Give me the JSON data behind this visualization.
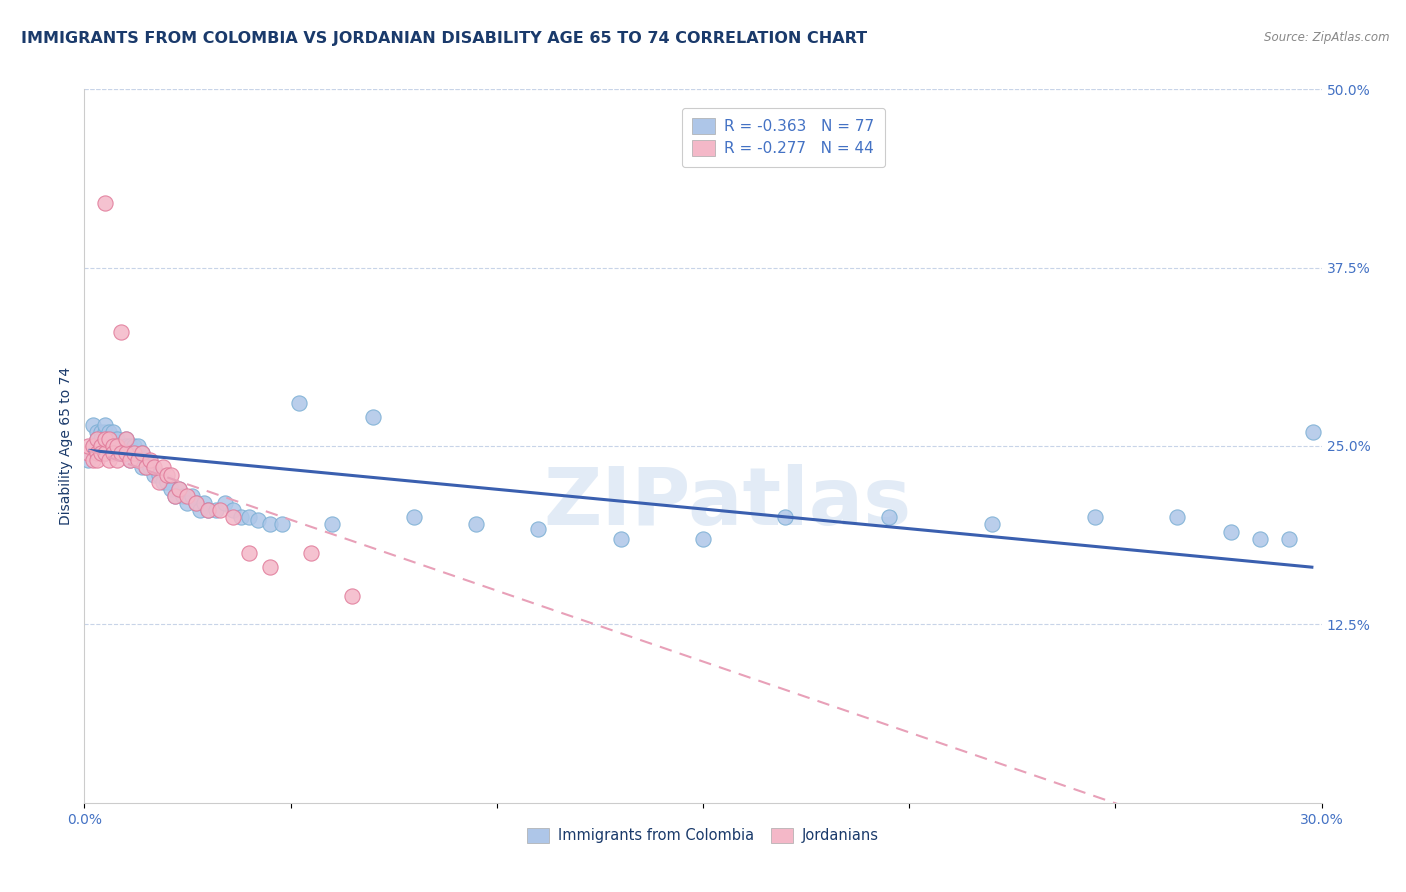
{
  "title": "IMMIGRANTS FROM COLOMBIA VS JORDANIAN DISABILITY AGE 65 TO 74 CORRELATION CHART",
  "source": "Source: ZipAtlas.com",
  "ylabel": "Disability Age 65 to 74",
  "xlim": [
    0.0,
    0.3
  ],
  "ylim": [
    0.0,
    0.5
  ],
  "ytick_right_vals": [
    0.125,
    0.25,
    0.375,
    0.5
  ],
  "ytick_right_labels": [
    "12.5%",
    "25.0%",
    "37.5%",
    "50.0%"
  ],
  "colombia_color": "#aec6e8",
  "colombia_edge": "#7bafd4",
  "jordan_color": "#f4b8c8",
  "jordan_edge": "#e07898",
  "trend_colombia_color": "#3a5faf",
  "trend_jordan_color": "#e8a0b8",
  "watermark": "ZIPatlas",
  "watermark_color": "#d0dff0",
  "legend_r_colombia": "R = -0.363",
  "legend_n_colombia": "N = 77",
  "legend_r_jordan": "R = -0.277",
  "legend_n_jordan": "N = 44",
  "legend_label_colombia": "Immigrants from Colombia",
  "legend_label_jordan": "Jordanians",
  "colombia_x": [
    0.001,
    0.002,
    0.002,
    0.003,
    0.003,
    0.003,
    0.004,
    0.004,
    0.004,
    0.005,
    0.005,
    0.005,
    0.005,
    0.006,
    0.006,
    0.006,
    0.007,
    0.007,
    0.007,
    0.008,
    0.008,
    0.008,
    0.009,
    0.009,
    0.01,
    0.01,
    0.01,
    0.011,
    0.011,
    0.012,
    0.012,
    0.013,
    0.013,
    0.014,
    0.014,
    0.015,
    0.015,
    0.016,
    0.017,
    0.018,
    0.019,
    0.02,
    0.021,
    0.022,
    0.023,
    0.024,
    0.025,
    0.026,
    0.027,
    0.028,
    0.029,
    0.03,
    0.032,
    0.034,
    0.036,
    0.038,
    0.04,
    0.042,
    0.045,
    0.048,
    0.052,
    0.06,
    0.07,
    0.08,
    0.095,
    0.11,
    0.13,
    0.15,
    0.17,
    0.195,
    0.22,
    0.245,
    0.265,
    0.278,
    0.285,
    0.292,
    0.298
  ],
  "colombia_y": [
    0.24,
    0.25,
    0.265,
    0.245,
    0.26,
    0.255,
    0.25,
    0.26,
    0.255,
    0.245,
    0.26,
    0.255,
    0.265,
    0.25,
    0.26,
    0.255,
    0.245,
    0.255,
    0.26,
    0.25,
    0.245,
    0.255,
    0.25,
    0.245,
    0.255,
    0.245,
    0.25,
    0.24,
    0.25,
    0.245,
    0.25,
    0.24,
    0.25,
    0.245,
    0.235,
    0.24,
    0.235,
    0.235,
    0.23,
    0.23,
    0.225,
    0.225,
    0.22,
    0.215,
    0.22,
    0.215,
    0.21,
    0.215,
    0.21,
    0.205,
    0.21,
    0.205,
    0.205,
    0.21,
    0.205,
    0.2,
    0.2,
    0.198,
    0.195,
    0.195,
    0.28,
    0.195,
    0.27,
    0.2,
    0.195,
    0.192,
    0.185,
    0.185,
    0.2,
    0.2,
    0.195,
    0.2,
    0.2,
    0.19,
    0.185,
    0.185,
    0.26
  ],
  "jordan_x": [
    0.001,
    0.001,
    0.002,
    0.002,
    0.003,
    0.003,
    0.003,
    0.004,
    0.004,
    0.005,
    0.005,
    0.005,
    0.006,
    0.006,
    0.007,
    0.007,
    0.008,
    0.008,
    0.009,
    0.009,
    0.01,
    0.01,
    0.011,
    0.012,
    0.013,
    0.014,
    0.015,
    0.016,
    0.017,
    0.018,
    0.019,
    0.02,
    0.021,
    0.022,
    0.023,
    0.025,
    0.027,
    0.03,
    0.033,
    0.036,
    0.04,
    0.045,
    0.055,
    0.065
  ],
  "jordan_y": [
    0.245,
    0.25,
    0.24,
    0.25,
    0.245,
    0.24,
    0.255,
    0.25,
    0.245,
    0.245,
    0.255,
    0.42,
    0.24,
    0.255,
    0.25,
    0.245,
    0.24,
    0.25,
    0.33,
    0.245,
    0.245,
    0.255,
    0.24,
    0.245,
    0.24,
    0.245,
    0.235,
    0.24,
    0.235,
    0.225,
    0.235,
    0.23,
    0.23,
    0.215,
    0.22,
    0.215,
    0.21,
    0.205,
    0.205,
    0.2,
    0.175,
    0.165,
    0.175,
    0.145
  ],
  "title_color": "#1a3a6b",
  "axis_color": "#4472c4",
  "tick_color": "#4472c4",
  "background_color": "#ffffff",
  "grid_color": "#c8d4e8",
  "title_fontsize": 11.5,
  "label_fontsize": 10
}
